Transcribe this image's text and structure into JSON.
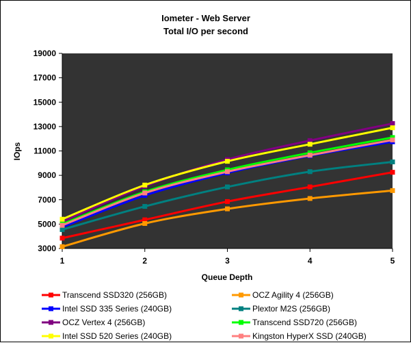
{
  "chart_data": {
    "type": "line",
    "title": "Iometer - Web Server",
    "subtitle": "Total I/O per second",
    "xlabel": "Queue Depth",
    "ylabel": "IOps",
    "x": [
      1,
      2,
      3,
      4,
      5
    ],
    "ylim": [
      3000,
      19000
    ],
    "yticks": [
      3000,
      5000,
      7000,
      9000,
      11000,
      13000,
      15000,
      17000,
      19000
    ],
    "grid": false,
    "legend_position": "bottom",
    "series": [
      {
        "name": "Transcend SSD320 (256GB)",
        "color": "#ff0000",
        "values": [
          3850,
          5350,
          6850,
          8050,
          9250
        ]
      },
      {
        "name": "OCZ Agility 4 (256GB)",
        "color": "#ff9900",
        "values": [
          3150,
          5050,
          6250,
          7100,
          7750
        ]
      },
      {
        "name": "Intel SSD 335 Series (240GB)",
        "color": "#0000ff",
        "values": [
          4750,
          7350,
          9200,
          10600,
          11750
        ]
      },
      {
        "name": "Plextor M2S (256GB)",
        "color": "#008080",
        "values": [
          4550,
          6450,
          8050,
          9300,
          10100
        ]
      },
      {
        "name": "OCZ Vertex 4 (256GB)",
        "color": "#800080",
        "values": [
          5200,
          8100,
          10300,
          11850,
          13250
        ]
      },
      {
        "name": "Transcend SSD720 (256GB)",
        "color": "#00ff00",
        "values": [
          5000,
          7650,
          9450,
          10850,
          12100
        ]
      },
      {
        "name": "Intel SSD 520 Series (240GB)",
        "color": "#ffff00",
        "values": [
          5400,
          8200,
          10150,
          11550,
          12900
        ]
      },
      {
        "name": "Kingston HyperX SSD (240GB)",
        "color": "#ff8080",
        "values": [
          4900,
          7550,
          9300,
          10650,
          11900
        ]
      }
    ]
  }
}
